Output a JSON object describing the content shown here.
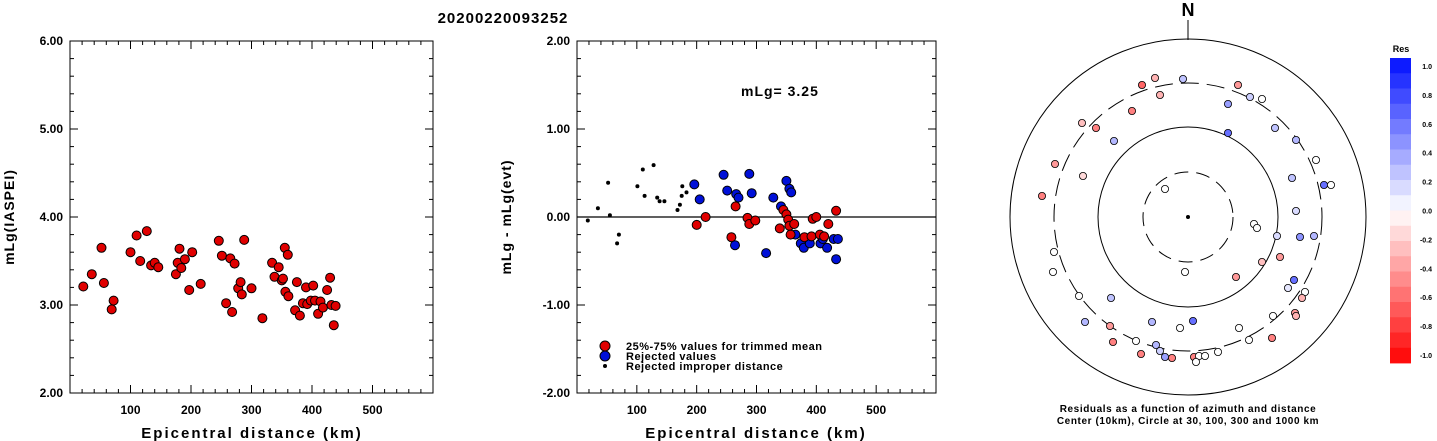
{
  "title": "20200220093252",
  "chart_data": [
    {
      "type": "scatter",
      "xlabel": "Epicentral distance (km)",
      "ylabel": "mLg(IASPEI)",
      "xlim": [
        0,
        600
      ],
      "ylim": [
        2.0,
        6.0
      ],
      "x_ticks": [
        "100",
        "200",
        "300",
        "400",
        "500"
      ],
      "y_ticks": [
        "2.00",
        "3.00",
        "4.00",
        "5.00",
        "6.00"
      ],
      "points": [
        [
          22,
          3.21
        ],
        [
          36,
          3.35
        ],
        [
          52,
          3.65
        ],
        [
          56,
          3.25
        ],
        [
          69,
          2.95
        ],
        [
          72,
          3.05
        ],
        [
          100,
          3.6
        ],
        [
          110,
          3.79
        ],
        [
          116,
          3.5
        ],
        [
          127,
          3.84
        ],
        [
          134,
          3.45
        ],
        [
          140,
          3.48
        ],
        [
          146,
          3.43
        ],
        [
          175,
          3.35
        ],
        [
          178,
          3.48
        ],
        [
          181,
          3.64
        ],
        [
          184,
          3.42
        ],
        [
          190,
          3.52
        ],
        [
          197,
          3.17
        ],
        [
          202,
          3.6
        ],
        [
          216,
          3.24
        ],
        [
          246,
          3.73
        ],
        [
          251,
          3.56
        ],
        [
          258,
          3.02
        ],
        [
          265,
          3.53
        ],
        [
          268,
          2.92
        ],
        [
          272,
          3.47
        ],
        [
          278,
          3.19
        ],
        [
          282,
          3.26
        ],
        [
          284,
          3.12
        ],
        [
          288,
          3.74
        ],
        [
          300,
          3.19
        ],
        [
          318,
          2.85
        ],
        [
          334,
          3.48
        ],
        [
          338,
          3.32
        ],
        [
          345,
          3.43
        ],
        [
          350,
          3.28
        ],
        [
          352,
          3.3
        ],
        [
          355,
          3.65
        ],
        [
          356,
          3.15
        ],
        [
          360,
          3.57
        ],
        [
          361,
          3.1
        ],
        [
          372,
          2.94
        ],
        [
          375,
          3.26
        ],
        [
          380,
          2.88
        ],
        [
          385,
          3.02
        ],
        [
          390,
          3.2
        ],
        [
          392,
          3.01
        ],
        [
          398,
          3.05
        ],
        [
          402,
          3.22
        ],
        [
          405,
          3.05
        ],
        [
          410,
          2.9
        ],
        [
          414,
          3.04
        ],
        [
          418,
          2.97
        ],
        [
          425,
          3.17
        ],
        [
          430,
          3.31
        ],
        [
          432,
          3.0
        ],
        [
          436,
          2.77
        ],
        [
          439,
          2.99
        ]
      ]
    },
    {
      "type": "scatter",
      "xlabel": "Epicentral distance (km)",
      "ylabel": "mLg - mLg(evt)",
      "xlim": [
        0,
        600
      ],
      "ylim": [
        -2.0,
        2.0
      ],
      "x_ticks": [
        "100",
        "200",
        "300",
        "400",
        "500"
      ],
      "y_ticks": [
        "-2.00",
        "-1.00",
        "0.00",
        "1.00",
        "2.00"
      ],
      "annotation": "mLg= 3.25",
      "legend": [
        {
          "label": "25%-75% values for trimmed mean",
          "color": "#e00000"
        },
        {
          "label": "Rejected values",
          "color": "#0010d8"
        },
        {
          "label": "Rejected improper distance",
          "color": "#000000"
        }
      ],
      "red_points": [
        [
          200,
          -0.09
        ],
        [
          215,
          0.0
        ],
        [
          258,
          -0.23
        ],
        [
          265,
          0.12
        ],
        [
          285,
          -0.01
        ],
        [
          288,
          -0.08
        ],
        [
          298,
          -0.04
        ],
        [
          339,
          -0.13
        ],
        [
          345,
          0.08
        ],
        [
          350,
          0.03
        ],
        [
          353,
          -0.03
        ],
        [
          355,
          -0.1
        ],
        [
          357,
          -0.2
        ],
        [
          363,
          -0.08
        ],
        [
          380,
          -0.23
        ],
        [
          392,
          -0.22
        ],
        [
          394,
          -0.02
        ],
        [
          400,
          0.0
        ],
        [
          406,
          -0.2
        ],
        [
          413,
          -0.22
        ],
        [
          420,
          -0.08
        ],
        [
          433,
          0.07
        ]
      ],
      "blue_points": [
        [
          196,
          0.37
        ],
        [
          205,
          0.2
        ],
        [
          245,
          0.48
        ],
        [
          251,
          0.3
        ],
        [
          264,
          -0.32
        ],
        [
          266,
          0.26
        ],
        [
          270,
          0.22
        ],
        [
          288,
          0.49
        ],
        [
          292,
          0.27
        ],
        [
          316,
          -0.41
        ],
        [
          328,
          0.22
        ],
        [
          341,
          0.12
        ],
        [
          350,
          0.41
        ],
        [
          355,
          0.32
        ],
        [
          358,
          0.28
        ],
        [
          365,
          -0.2
        ],
        [
          374,
          -0.3
        ],
        [
          379,
          -0.35
        ],
        [
          389,
          -0.3
        ],
        [
          407,
          -0.3
        ],
        [
          411,
          -0.25
        ],
        [
          418,
          -0.35
        ],
        [
          429,
          -0.25
        ],
        [
          433,
          -0.48
        ],
        [
          436,
          -0.25
        ]
      ],
      "black_points": [
        [
          18,
          -0.04
        ],
        [
          35,
          0.1
        ],
        [
          52,
          0.39
        ],
        [
          55,
          0.02
        ],
        [
          67,
          -0.3
        ],
        [
          70,
          -0.2
        ],
        [
          101,
          0.35
        ],
        [
          110,
          0.54
        ],
        [
          113,
          0.24
        ],
        [
          128,
          0.59
        ],
        [
          134,
          0.22
        ],
        [
          138,
          0.18
        ],
        [
          146,
          0.18
        ],
        [
          168,
          0.08
        ],
        [
          172,
          0.14
        ],
        [
          175,
          0.24
        ],
        [
          176,
          0.35
        ],
        [
          183,
          0.28
        ]
      ]
    },
    {
      "type": "scatter",
      "title": "N",
      "caption_line1": "Residuals as a function of azimuth and distance",
      "caption_line2": "Center (10km), Circle at 30, 100, 300 and 1000 km",
      "colorbar_title": "Res",
      "colorbar_ticks": [
        "1.0",
        "0.8",
        "0.6",
        "0.4",
        "0.2",
        "0.0",
        "-0.2",
        "-0.4",
        "-0.6",
        "-0.8",
        "-1.0"
      ],
      "stations": [
        [
          1155,
          78,
          -0.3
        ],
        [
          1142,
          85,
          -0.6
        ],
        [
          1160,
          95,
          -0.3
        ],
        [
          1183,
          79,
          0.25
        ],
        [
          1238,
          85,
          -0.4
        ],
        [
          1250,
          97,
          0.2
        ],
        [
          1262,
          99,
          0.0
        ],
        [
          1228,
          104,
          0.4
        ],
        [
          1132,
          111,
          -0.5
        ],
        [
          1275,
          128,
          0.25
        ],
        [
          1082,
          123,
          -0.25
        ],
        [
          1096,
          128,
          -0.5
        ],
        [
          1114,
          141,
          0.3
        ],
        [
          1228,
          133,
          0.6
        ],
        [
          1296,
          140,
          0.3
        ],
        [
          1055,
          164,
          -0.4
        ],
        [
          1083,
          176,
          -0.15
        ],
        [
          1316,
          160,
          0.0
        ],
        [
          1292,
          178,
          0.25
        ],
        [
          1324,
          185,
          0.6
        ],
        [
          1331,
          185,
          0.0
        ],
        [
          1042,
          196,
          -0.5
        ],
        [
          1165,
          189,
          0.0
        ],
        [
          1254,
          224,
          0.0
        ],
        [
          1257,
          228,
          0.0
        ],
        [
          1296,
          211,
          0.15
        ],
        [
          1277,
          236,
          0.15
        ],
        [
          1300,
          237,
          0.45
        ],
        [
          1314,
          236,
          0.3
        ],
        [
          1054,
          252,
          0.0
        ],
        [
          1053,
          272,
          0.0
        ],
        [
          1280,
          257,
          -0.4
        ],
        [
          1262,
          262,
          -0.25
        ],
        [
          1236,
          277,
          -0.4
        ],
        [
          1185,
          272,
          0.0
        ],
        [
          1294,
          280,
          0.6
        ],
        [
          1288,
          288,
          0.1
        ],
        [
          1305,
          292,
          0.0
        ],
        [
          1079,
          296,
          0.0
        ],
        [
          1302,
          298,
          -0.3
        ],
        [
          1111,
          298,
          0.25
        ],
        [
          1295,
          313,
          -0.4
        ],
        [
          1296,
          316,
          -0.3
        ],
        [
          1273,
          316,
          0.0
        ],
        [
          1085,
          322,
          0.3
        ],
        [
          1110,
          326,
          -0.4
        ],
        [
          1152,
          322,
          0.3
        ],
        [
          1193,
          321,
          0.6
        ],
        [
          1239,
          328,
          0.0
        ],
        [
          1113,
          342,
          -0.5
        ],
        [
          1136,
          341,
          0.0
        ],
        [
          1156,
          345,
          0.3
        ],
        [
          1180,
          328,
          0.0
        ],
        [
          1249,
          340,
          0.0
        ],
        [
          1272,
          338,
          -0.5
        ],
        [
          1160,
          351,
          0.2
        ],
        [
          1172,
          358,
          -0.5
        ],
        [
          1165,
          357,
          0.4
        ],
        [
          1194,
          357,
          -0.5
        ],
        [
          1199,
          356,
          0.0
        ],
        [
          1205,
          356,
          0.0
        ],
        [
          1218,
          352,
          0.0
        ],
        [
          1196,
          362,
          0.0
        ],
        [
          1141,
          354,
          -0.5
        ]
      ]
    }
  ]
}
